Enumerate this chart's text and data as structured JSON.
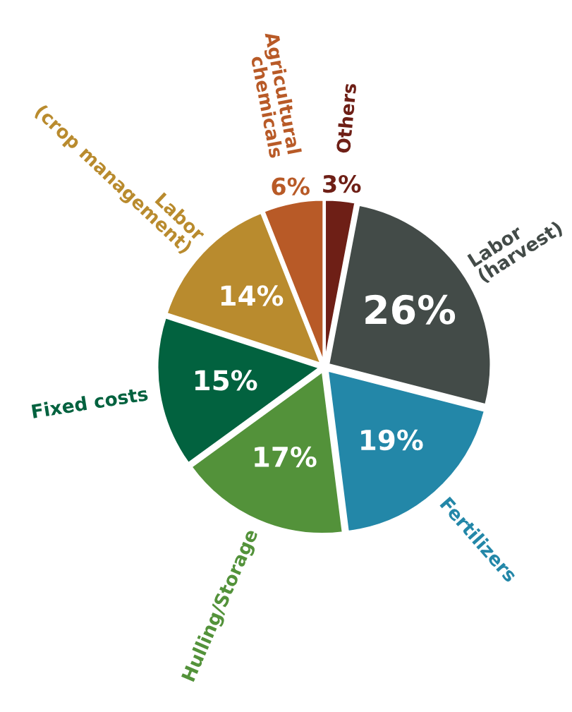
{
  "chart_data": {
    "type": "pie",
    "categories": [
      "Others",
      "Labor\n(harvest)",
      "Fertilizers",
      "Hulling/Storage",
      "Fixed costs",
      "Labor\n(crop management)",
      "Agricultural\nchemicals"
    ],
    "values": [
      3,
      26,
      19,
      17,
      15,
      14,
      6
    ],
    "value_labels": [
      "3%",
      "26%",
      "19%",
      "17%",
      "15%",
      "14%",
      "6%"
    ],
    "colors": [
      "#6e1f16",
      "#434b48",
      "#2387a8",
      "#53923a",
      "#02623f",
      "#b98b2e",
      "#b85a27"
    ],
    "legend": false
  }
}
